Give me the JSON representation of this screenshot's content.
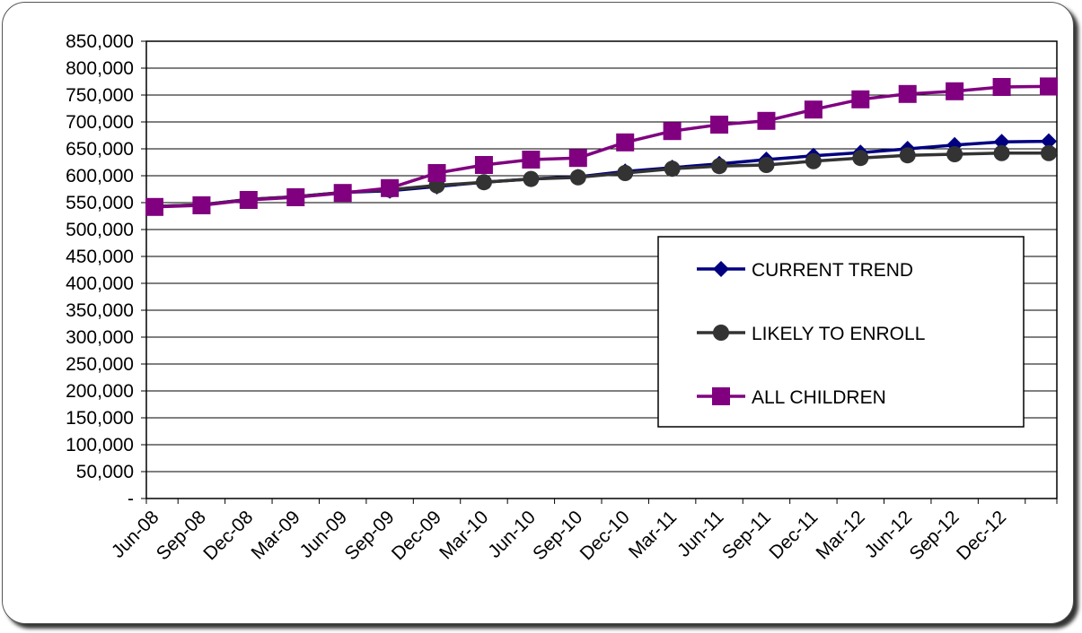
{
  "chart_data": {
    "type": "line",
    "categories": [
      "Jun-08",
      "Sep-08",
      "Dec-08",
      "Mar-09",
      "Jun-09",
      "Sep-09",
      "Dec-09",
      "Mar-10",
      "Jun-10",
      "Sep-10",
      "Dec-10",
      "Mar-11",
      "Jun-11",
      "Sep-11",
      "Dec-11",
      "Mar-12",
      "Jun-12",
      "Sep-12",
      "Dec-12",
      null
    ],
    "series": [
      {
        "name": "CURRENT TREND",
        "color": "#000080",
        "marker": "diamond",
        "values": [
          543000,
          546000,
          556000,
          561000,
          569000,
          572000,
          580000,
          588000,
          594000,
          598000,
          608000,
          615000,
          622000,
          630000,
          637000,
          643000,
          650000,
          657000,
          663000,
          664000
        ]
      },
      {
        "name": "LIKELY TO ENROLL",
        "color": "#333333",
        "marker": "circle",
        "values": [
          543000,
          546000,
          556000,
          561000,
          569000,
          574000,
          582000,
          588000,
          594000,
          597000,
          605000,
          613000,
          618000,
          620000,
          627000,
          633000,
          638000,
          640000,
          642000,
          642000
        ]
      },
      {
        "name": "ALL CHILDREN",
        "color": "#800080",
        "marker": "square",
        "values": [
          542000,
          545000,
          555000,
          560000,
          568000,
          577000,
          605000,
          620000,
          630000,
          633000,
          662000,
          683000,
          695000,
          702000,
          723000,
          742000,
          752000,
          757000,
          765000,
          766000
        ]
      }
    ],
    "ylim": [
      0,
      850000
    ],
    "yticks": [
      {
        "value": 0,
        "label": "-"
      },
      {
        "value": 50000,
        "label": "50,000"
      },
      {
        "value": 100000,
        "label": "100,000"
      },
      {
        "value": 150000,
        "label": "150,000"
      },
      {
        "value": 200000,
        "label": "200,000"
      },
      {
        "value": 250000,
        "label": "250,000"
      },
      {
        "value": 300000,
        "label": "300,000"
      },
      {
        "value": 350000,
        "label": "350,000"
      },
      {
        "value": 400000,
        "label": "400,000"
      },
      {
        "value": 450000,
        "label": "450,000"
      },
      {
        "value": 500000,
        "label": "500,000"
      },
      {
        "value": 550000,
        "label": "550,000"
      },
      {
        "value": 600000,
        "label": "600,000"
      },
      {
        "value": 650000,
        "label": "650,000"
      },
      {
        "value": 700000,
        "label": "700,000"
      },
      {
        "value": 750000,
        "label": "750,000"
      },
      {
        "value": 800000,
        "label": "800,000"
      },
      {
        "value": 850000,
        "label": "850,000"
      }
    ],
    "grid": true,
    "legend": "right"
  }
}
